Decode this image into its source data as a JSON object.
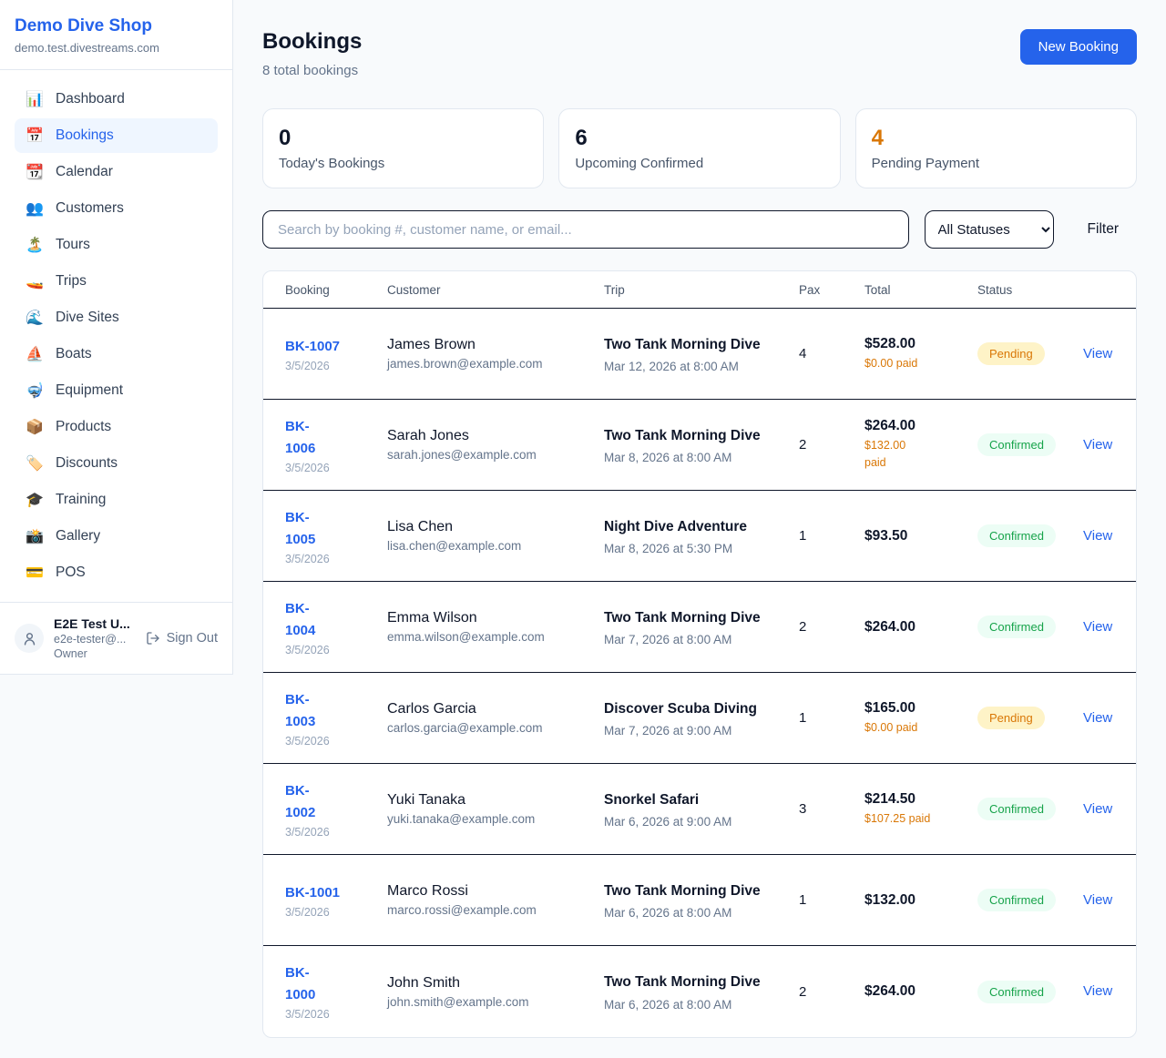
{
  "colors": {
    "primary": "#2563eb",
    "pending_text": "#d97706",
    "pending_bg": "#fef3c7",
    "confirmed_text": "#16a34a",
    "confirmed_bg": "#ecfdf5"
  },
  "sidebar": {
    "title": "Demo Dive Shop",
    "domain": "demo.test.divestreams.com",
    "items": [
      {
        "label": "Dashboard",
        "icon": "📊",
        "icon_name": "bar-chart-icon",
        "active": false
      },
      {
        "label": "Bookings",
        "icon": "📅",
        "icon_name": "calendar-icon",
        "active": true
      },
      {
        "label": "Calendar",
        "icon": "📆",
        "icon_name": "tear-off-calendar-icon",
        "active": false
      },
      {
        "label": "Customers",
        "icon": "👥",
        "icon_name": "people-icon",
        "active": false
      },
      {
        "label": "Tours",
        "icon": "🏝️",
        "icon_name": "island-icon",
        "active": false
      },
      {
        "label": "Trips",
        "icon": "🚤",
        "icon_name": "speedboat-icon",
        "active": false
      },
      {
        "label": "Dive Sites",
        "icon": "🌊",
        "icon_name": "wave-icon",
        "active": false
      },
      {
        "label": "Boats",
        "icon": "⛵",
        "icon_name": "sailboat-icon",
        "active": false
      },
      {
        "label": "Equipment",
        "icon": "🤿",
        "icon_name": "diving-mask-icon",
        "active": false
      },
      {
        "label": "Products",
        "icon": "📦",
        "icon_name": "package-icon",
        "active": false
      },
      {
        "label": "Discounts",
        "icon": "🏷️",
        "icon_name": "tag-icon",
        "active": false
      },
      {
        "label": "Training",
        "icon": "🎓",
        "icon_name": "graduation-cap-icon",
        "active": false
      },
      {
        "label": "Gallery",
        "icon": "📸",
        "icon_name": "camera-icon",
        "active": false
      },
      {
        "label": "POS",
        "icon": "💳",
        "icon_name": "credit-card-icon",
        "active": false
      }
    ],
    "user": {
      "name": "E2E Test U...",
      "email": "e2e-tester@...",
      "role": "Owner",
      "sign_out_label": "Sign Out"
    }
  },
  "header": {
    "title": "Bookings",
    "subtitle": "8 total bookings",
    "new_booking_label": "New Booking"
  },
  "stats": [
    {
      "value": "0",
      "label": "Today's Bookings",
      "accent": false
    },
    {
      "value": "6",
      "label": "Upcoming Confirmed",
      "accent": false
    },
    {
      "value": "4",
      "label": "Pending Payment",
      "accent": true
    }
  ],
  "toolbar": {
    "search_placeholder": "Search by booking #, customer name, or email...",
    "status_filter_value": "All Statuses",
    "filter_label": "Filter"
  },
  "table": {
    "columns": [
      "Booking",
      "Customer",
      "Trip",
      "Pax",
      "Total",
      "Status"
    ],
    "view_label": "View",
    "rows": [
      {
        "id": "BK-1007",
        "id_wrap": false,
        "date": "3/5/2026",
        "customer": "James Brown",
        "email": "james.brown@example.com",
        "trip": "Two Tank Morning Dive",
        "trip_time": "Mar 12, 2026 at 8:00 AM",
        "pax": "4",
        "total": "$528.00",
        "paid": "$0.00 paid",
        "paid_wrap": false,
        "status": "Pending",
        "status_type": "pending"
      },
      {
        "id": "BK-1006",
        "id_wrap": true,
        "date": "3/5/2026",
        "customer": "Sarah Jones",
        "email": "sarah.jones@example.com",
        "trip": "Two Tank Morning Dive",
        "trip_time": "Mar 8, 2026 at 8:00 AM",
        "pax": "2",
        "total": "$264.00",
        "paid": "$132.00 paid",
        "paid_wrap": true,
        "status": "Confirmed",
        "status_type": "confirmed"
      },
      {
        "id": "BK-1005",
        "id_wrap": true,
        "date": "3/5/2026",
        "customer": "Lisa Chen",
        "email": "lisa.chen@example.com",
        "trip": "Night Dive Adventure",
        "trip_time": "Mar 8, 2026 at 5:30 PM",
        "pax": "1",
        "total": "$93.50",
        "paid": null,
        "paid_wrap": false,
        "status": "Confirmed",
        "status_type": "confirmed"
      },
      {
        "id": "BK-1004",
        "id_wrap": true,
        "date": "3/5/2026",
        "customer": "Emma Wilson",
        "email": "emma.wilson@example.com",
        "trip": "Two Tank Morning Dive",
        "trip_time": "Mar 7, 2026 at 8:00 AM",
        "pax": "2",
        "total": "$264.00",
        "paid": null,
        "paid_wrap": false,
        "status": "Confirmed",
        "status_type": "confirmed"
      },
      {
        "id": "BK-1003",
        "id_wrap": true,
        "date": "3/5/2026",
        "customer": "Carlos Garcia",
        "email": "carlos.garcia@example.com",
        "trip": "Discover Scuba Diving",
        "trip_time": "Mar 7, 2026 at 9:00 AM",
        "pax": "1",
        "total": "$165.00",
        "paid": "$0.00 paid",
        "paid_wrap": false,
        "status": "Pending",
        "status_type": "pending"
      },
      {
        "id": "BK-1002",
        "id_wrap": true,
        "date": "3/5/2026",
        "customer": "Yuki Tanaka",
        "email": "yuki.tanaka@example.com",
        "trip": "Snorkel Safari",
        "trip_time": "Mar 6, 2026 at 9:00 AM",
        "pax": "3",
        "total": "$214.50",
        "paid": "$107.25 paid",
        "paid_wrap": false,
        "status": "Confirmed",
        "status_type": "confirmed"
      },
      {
        "id": "BK-1001",
        "id_wrap": false,
        "date": "3/5/2026",
        "customer": "Marco Rossi",
        "email": "marco.rossi@example.com",
        "trip": "Two Tank Morning Dive",
        "trip_time": "Mar 6, 2026 at 8:00 AM",
        "pax": "1",
        "total": "$132.00",
        "paid": null,
        "paid_wrap": false,
        "status": "Confirmed",
        "status_type": "confirmed"
      },
      {
        "id": "BK-1000",
        "id_wrap": true,
        "date": "3/5/2026",
        "customer": "John Smith",
        "email": "john.smith@example.com",
        "trip": "Two Tank Morning Dive",
        "trip_time": "Mar 6, 2026 at 8:00 AM",
        "pax": "2",
        "total": "$264.00",
        "paid": null,
        "paid_wrap": false,
        "status": "Confirmed",
        "status_type": "confirmed"
      }
    ]
  }
}
